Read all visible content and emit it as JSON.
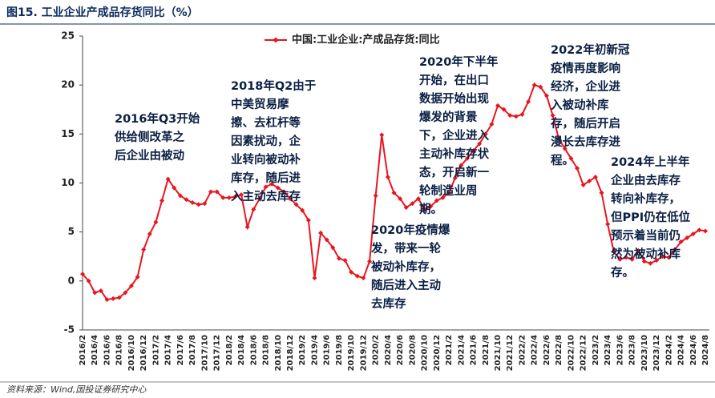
{
  "chart_data": {
    "type": "line",
    "title": "图15. 工业企业产成品存货同比（%）",
    "source": "资料来源：Wind,国投证券研究中心",
    "categories": [
      "2016/2",
      null,
      "2016/4",
      null,
      "2016/6",
      null,
      "2016/8",
      null,
      "2016/10",
      null,
      "2016/12",
      null,
      "2017/2",
      null,
      "2017/4",
      null,
      "2017/6",
      null,
      "2017/8",
      null,
      "2017/10",
      null,
      "2017/12",
      null,
      "2018/2",
      null,
      "2018/4",
      null,
      "2018/6",
      null,
      "2018/8",
      null,
      "2018/10",
      null,
      "2018/12",
      null,
      "2019/2",
      null,
      "2019/4",
      null,
      "2019/6",
      null,
      "2019/8",
      null,
      "2019/10",
      null,
      "2019/12",
      null,
      "2020/2",
      null,
      "2020/4",
      null,
      "2020/6",
      null,
      "2020/8",
      null,
      "2020/10",
      null,
      "2020/12",
      null,
      "2021/2",
      null,
      "2021/4",
      null,
      "2021/6",
      null,
      "2021/8",
      null,
      "2021/10",
      null,
      "2021/12",
      null,
      "2022/2",
      null,
      "2022/4",
      null,
      "2022/6",
      null,
      "2022/8",
      null,
      "2022/10",
      null,
      "2022/12",
      null,
      "2023/2",
      null,
      "2023/4",
      null,
      "2023/6",
      null,
      "2023/8",
      null,
      "2023/10",
      null,
      "2023/12",
      null,
      "2024/2",
      null,
      "2024/4",
      null,
      "2024/6",
      null,
      "2024/8"
    ],
    "series": [
      {
        "name": "中国:工业企业:产成品存货:同比",
        "color": "#e8161e",
        "values": [
          0.7,
          0.0,
          -1.2,
          -1.0,
          -1.9,
          -1.8,
          -1.7,
          -1.2,
          -0.5,
          0.4,
          3.2,
          4.8,
          6.0,
          8.2,
          10.4,
          9.5,
          8.7,
          8.3,
          8.0,
          7.8,
          7.9,
          9.1,
          9.1,
          8.5,
          8.5,
          8.6,
          8.8,
          5.5,
          7.3,
          8.4,
          9.6,
          9.9,
          9.5,
          9.1,
          8.4,
          7.8,
          7.2,
          6.2,
          0.3,
          4.9,
          4.2,
          3.4,
          2.3,
          2.1,
          0.9,
          0.5,
          0.3,
          2.0,
          8.7,
          14.9,
          10.6,
          9.0,
          8.4,
          7.5,
          7.9,
          8.4,
          7.3,
          7.6,
          8.2,
          8.5,
          9.0,
          10.5,
          11.8,
          12.5,
          13.3,
          14.0,
          15.0,
          16.0,
          17.9,
          17.5,
          16.9,
          16.8,
          17.0,
          18.3,
          20.0,
          19.8,
          18.9,
          16.9,
          14.5,
          13.5,
          12.5,
          11.5,
          9.8,
          10.2,
          10.6,
          9.0,
          5.8,
          3.0,
          2.2,
          2.4,
          2.2,
          3.1,
          2.0,
          1.8,
          2.1,
          2.5,
          2.4,
          3.2,
          4.0,
          4.4,
          4.8,
          5.2,
          5.1
        ]
      }
    ],
    "ylim": [
      -5,
      25
    ],
    "yticks": [
      -5,
      0,
      5,
      10,
      15,
      20,
      25
    ],
    "legend": "top",
    "annotations": [
      [
        "2016年Q3开始",
        "供给侧改革之",
        "后企业由被动"
      ],
      [
        "2018年Q2由于",
        "中美贸易摩",
        "擦、去杠杆等",
        "因素扰动，企",
        "业转向被动补",
        "库存，随后进",
        "入主动去库存"
      ],
      [
        "2020年下半年",
        "开始，在出口",
        "数据开始出现",
        "爆发的背景",
        "下，企业进入",
        "主动补库存状",
        "态，开启新一",
        "轮制造业周",
        "期。"
      ],
      [
        "2020年疫情爆",
        "发，带来一轮",
        "被动补库存，",
        "随后进入主动",
        "去库存"
      ],
      [
        "2022年初新冠",
        "疫情再度影响",
        "经济，企业进",
        "入被动补库",
        "存，随后开启",
        "漫长去库存进",
        "程。"
      ],
      [
        "2024年上半年",
        "企业由去库存",
        "转向补库存，",
        "但PPI仍在低位",
        "预示着当前仍",
        "然为被动补库",
        "存。"
      ]
    ]
  }
}
